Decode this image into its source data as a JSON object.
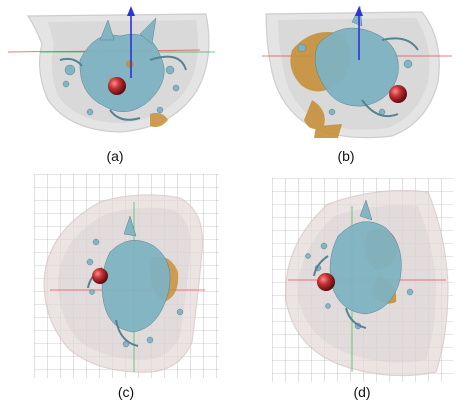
{
  "figure": {
    "panels": [
      {
        "id": "a",
        "caption": "(a)"
      },
      {
        "id": "b",
        "caption": "(b)"
      },
      {
        "id": "c",
        "caption": "(c)"
      },
      {
        "id": "d",
        "caption": "(d)"
      }
    ]
  },
  "colors": {
    "shell": "#dcdcdc",
    "vessel": "#7fb3c2",
    "vessel_dark": "#4f7f8f",
    "tissue": "#c8903a",
    "lesion": "#b3262b",
    "axis_blue": "#2a36d6",
    "axis_red": "#e05050",
    "axis_green": "#33bb55",
    "grid": "#9a9a9a"
  }
}
